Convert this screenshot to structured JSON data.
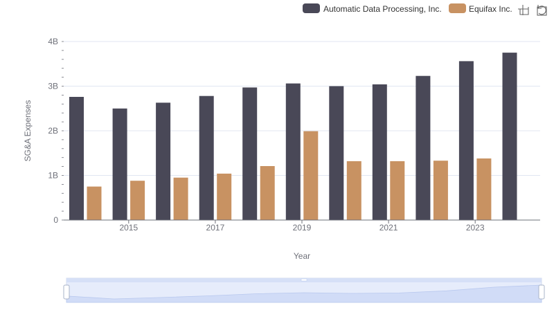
{
  "chart_data": {
    "type": "bar",
    "x": [
      2014,
      2015,
      2016,
      2017,
      2018,
      2019,
      2020,
      2021,
      2022,
      2023,
      2024
    ],
    "x_tick_labels": [
      "2015",
      "2017",
      "2019",
      "2021",
      "2023"
    ],
    "x_tick_values": [
      2015,
      2017,
      2019,
      2021,
      2023
    ],
    "series": [
      {
        "name": "Automatic Data Processing, Inc.",
        "color": "#494857",
        "values": [
          2.76,
          2.5,
          2.63,
          2.78,
          2.97,
          3.06,
          3.0,
          3.04,
          3.23,
          3.56,
          3.75
        ]
      },
      {
        "name": "Equifax Inc.",
        "color": "#c89262",
        "values": [
          0.75,
          0.88,
          0.95,
          1.04,
          1.21,
          1.99,
          1.32,
          1.32,
          1.33,
          1.38,
          null
        ]
      }
    ],
    "xlabel": "Year",
    "ylabel": "SG&A Expenses",
    "ylim": [
      0,
      4
    ],
    "y_unit": "B",
    "y_ticks": [
      {
        "value": 0,
        "label": "0"
      },
      {
        "value": 1,
        "label": "1B"
      },
      {
        "value": 2,
        "label": "2B"
      },
      {
        "value": 3,
        "label": "3B"
      },
      {
        "value": 4,
        "label": "4B"
      }
    ],
    "grid": true,
    "legend_position": "top-right"
  },
  "toolbar": {
    "icons": [
      "zoom-icon",
      "restore-icon"
    ]
  },
  "data_zoom": {
    "range_percent": [
      0,
      100
    ],
    "background_color": "#e6ecfb",
    "fill_color": "#d1dcf7"
  }
}
